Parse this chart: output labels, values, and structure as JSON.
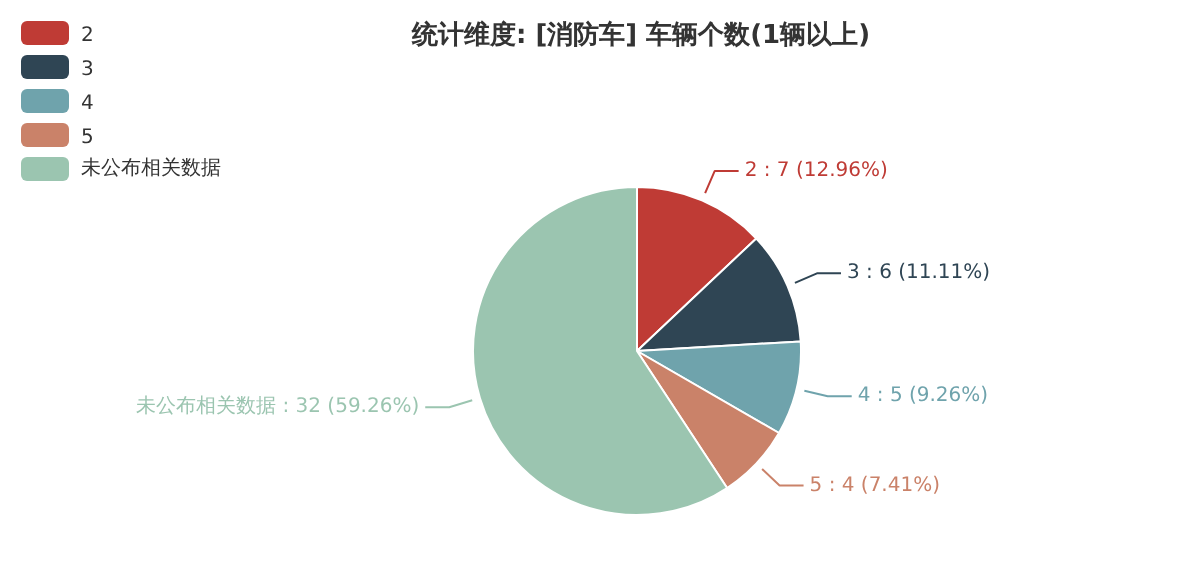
{
  "chart_data": {
    "type": "pie",
    "title": "统计维度: [消防车] 车辆个数(1辆以上)",
    "categories": [
      "2",
      "3",
      "4",
      "5",
      "未公布相关数据"
    ],
    "values": [
      7,
      6,
      5,
      4,
      32
    ],
    "colors": [
      "#bf3b35",
      "#2f4554",
      "#6fa3ac",
      "#ca8269",
      "#9bc5b0"
    ],
    "value_labels": [
      "2 : 7 (12.96%)",
      "3 : 6 (11.11%)",
      "4 : 5 (9.26%)",
      "5 : 4 (7.41%)",
      "未公布相关数据 : 32 (59.26%)"
    ],
    "legend": "top left"
  }
}
